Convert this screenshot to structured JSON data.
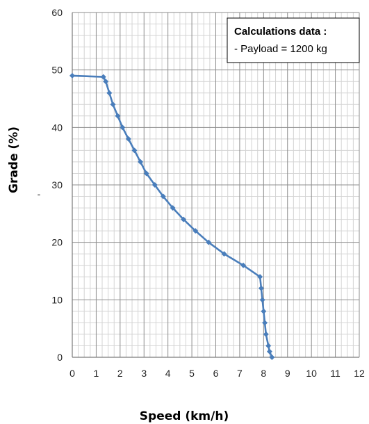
{
  "chart_data": {
    "type": "line",
    "xlabel": "Speed (km/h)",
    "ylabel": "Grade (%)",
    "xlim": [
      0,
      12
    ],
    "ylim": [
      0,
      60
    ],
    "x_ticks": [
      0,
      1,
      2,
      3,
      4,
      5,
      6,
      7,
      8,
      9,
      10,
      11,
      12
    ],
    "y_ticks": [
      0,
      10,
      20,
      30,
      40,
      50,
      60
    ],
    "minor_grid_x_step": 0.25,
    "minor_grid_y_step": 2,
    "grid": true,
    "series_color": "#4a7ebb",
    "series": [
      {
        "x": [
          0.0,
          1.3,
          1.4,
          1.55,
          1.7,
          1.9,
          2.1,
          2.35,
          2.6,
          2.85,
          3.1,
          3.45,
          3.8,
          4.2,
          4.65,
          5.15,
          5.7,
          6.35,
          7.15,
          7.85,
          7.9,
          7.95,
          8.0,
          8.05,
          8.1,
          8.2,
          8.25,
          8.35
        ],
        "y": [
          49,
          48.8,
          48,
          46,
          44,
          42,
          40,
          38,
          36,
          34,
          32,
          30,
          28,
          26,
          24,
          22,
          20,
          18,
          16,
          14,
          12,
          10,
          8,
          6,
          4,
          2,
          1,
          0
        ]
      }
    ],
    "annotation": {
      "title": "Calculations data :",
      "lines": [
        "- Payload = 1200 kg"
      ],
      "placement": "top-right"
    },
    "stray_mark": "-"
  }
}
